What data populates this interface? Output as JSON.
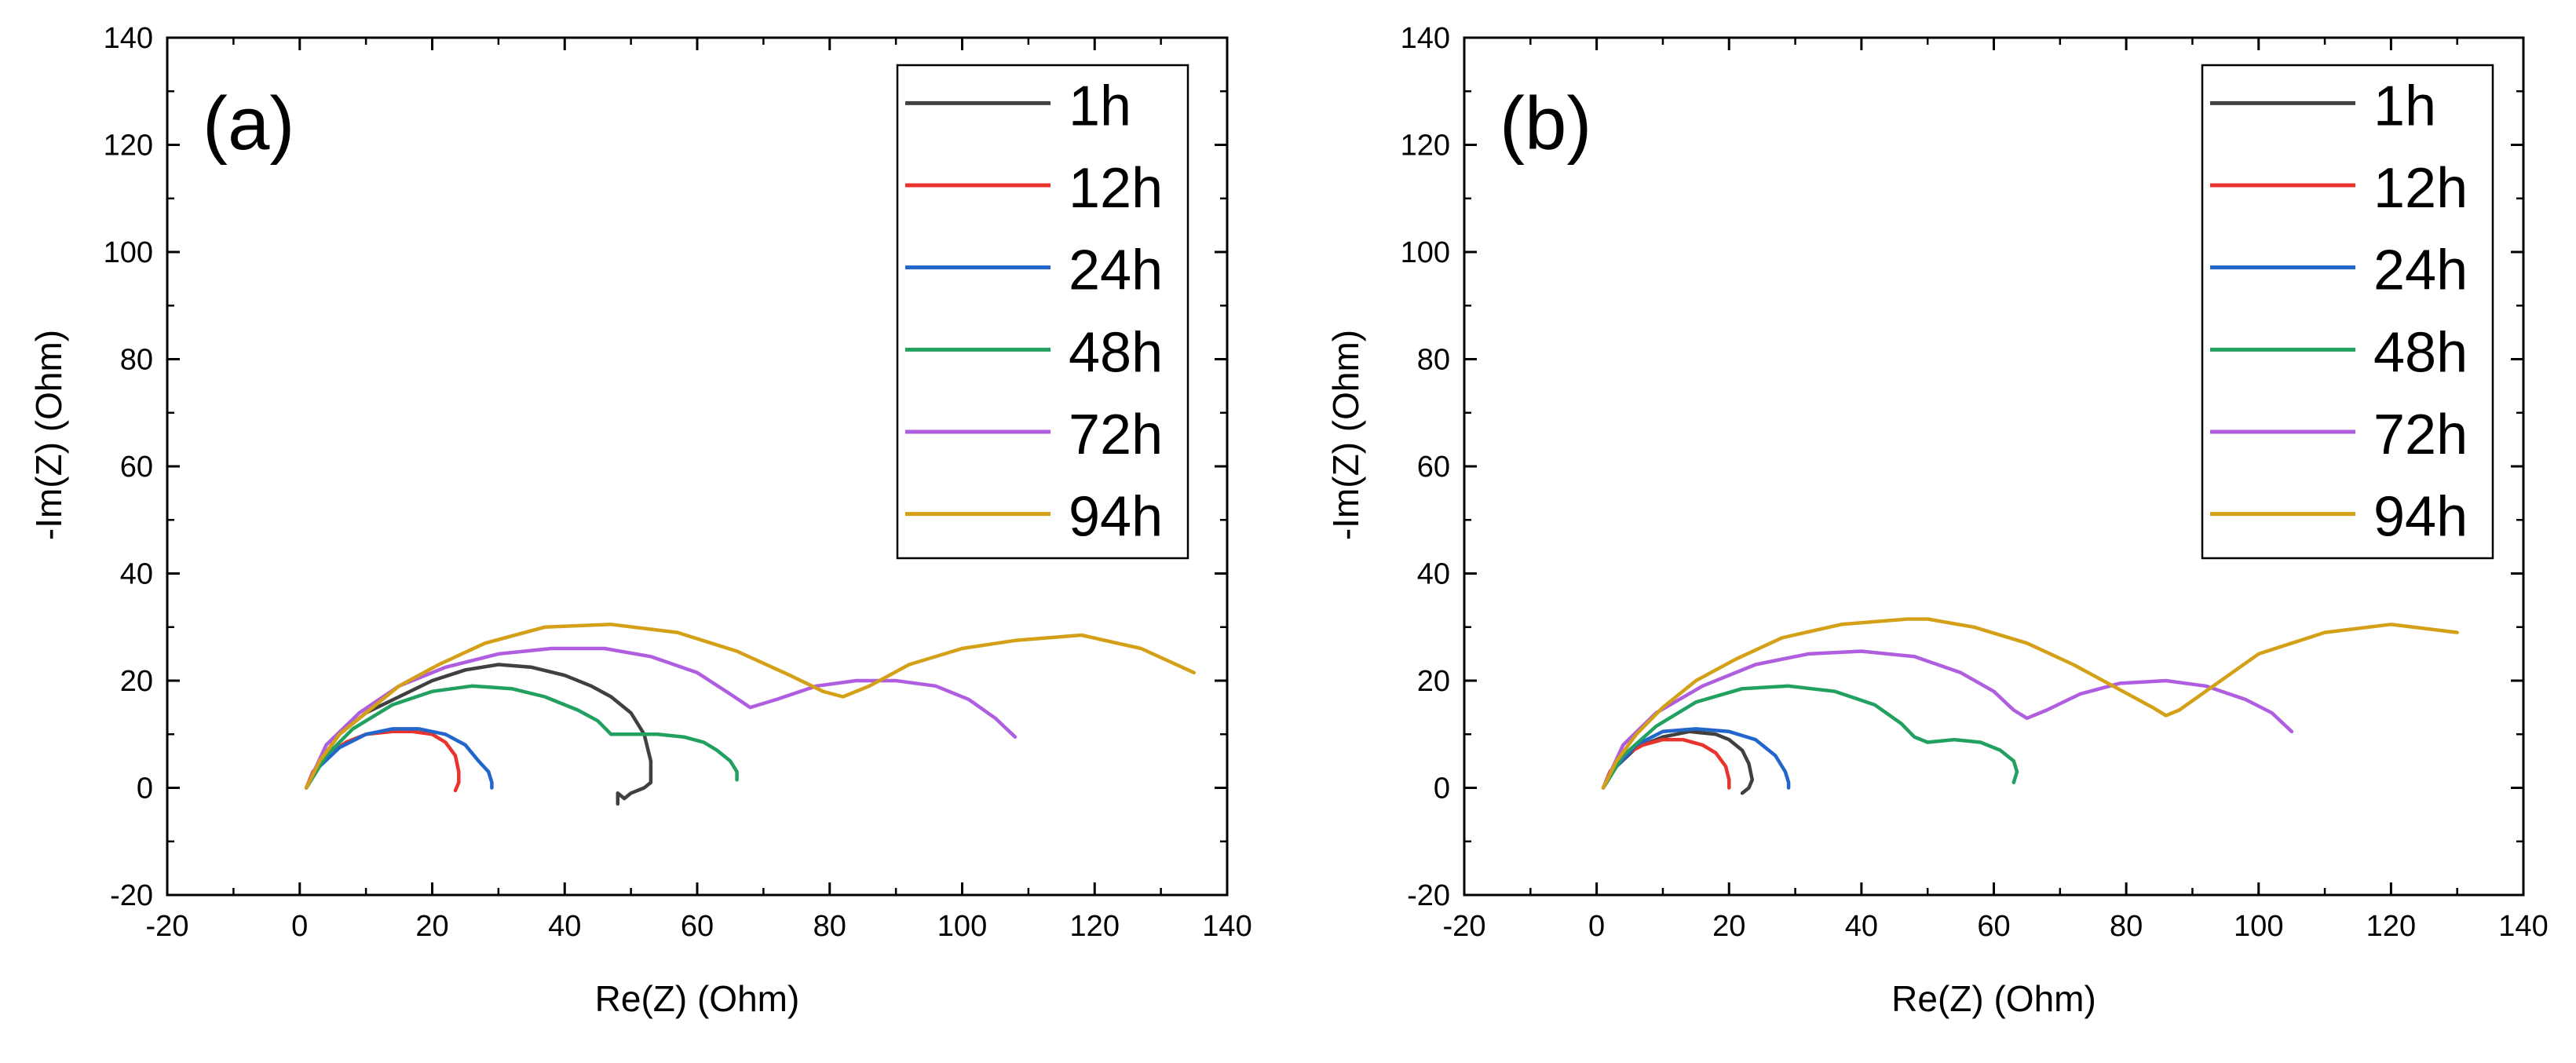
{
  "chart_data": [
    {
      "type": "line",
      "panel_label": "(a)",
      "xlabel": "Re(Z) (Ohm)",
      "ylabel": "-Im(Z) (Ohm)",
      "xlim": [
        -20,
        140
      ],
      "ylim": [
        -20,
        140
      ],
      "xticks": [
        "-20",
        "0",
        "20",
        "40",
        "60",
        "80",
        "100",
        "120",
        "140"
      ],
      "yticks": [
        "-20",
        "0",
        "20",
        "40",
        "60",
        "80",
        "100",
        "120",
        "140"
      ],
      "legend_position": "top-right",
      "series": [
        {
          "name": "1h",
          "color": "#404040",
          "x": [
            1,
            3,
            6,
            10,
            15,
            20,
            25,
            30,
            35,
            40,
            44,
            47,
            50,
            52,
            53,
            53,
            52,
            50,
            49,
            48,
            48
          ],
          "y": [
            0,
            5,
            10,
            14,
            17,
            20,
            22,
            23,
            22.5,
            21,
            19,
            17,
            14,
            10,
            5,
            1,
            0,
            -1,
            -2,
            -1,
            -3
          ]
        },
        {
          "name": "12h",
          "color": "#e8342c",
          "x": [
            1,
            2,
            4,
            7,
            10,
            14,
            17,
            20,
            22,
            23.5,
            24,
            24,
            23.5
          ],
          "y": [
            0,
            3,
            6,
            8.5,
            10,
            10.5,
            10.5,
            10,
            8.5,
            6,
            3,
            1,
            -0.5
          ]
        },
        {
          "name": "24h",
          "color": "#2266cc",
          "x": [
            1,
            3,
            6,
            10,
            14,
            18,
            22,
            25,
            27,
            28.5,
            29,
            29
          ],
          "y": [
            0,
            4,
            7.5,
            10,
            11,
            11,
            10,
            8,
            5,
            3,
            1,
            0
          ]
        },
        {
          "name": "48h",
          "color": "#22a060",
          "x": [
            1,
            4,
            8,
            14,
            20,
            26,
            32,
            37,
            42,
            45,
            47,
            50,
            54,
            58,
            61,
            63,
            65,
            66,
            66
          ],
          "y": [
            0,
            6,
            11,
            15.5,
            18,
            19,
            18.5,
            17,
            14.5,
            12.5,
            10,
            10,
            10,
            9.5,
            8.5,
            7,
            5,
            3,
            1.5
          ]
        },
        {
          "name": "72h",
          "color": "#b05ee0",
          "x": [
            1,
            4,
            9,
            15,
            22,
            30,
            38,
            46,
            53,
            60,
            65,
            68,
            72,
            78,
            84,
            90,
            96,
            101,
            105,
            108
          ],
          "y": [
            0,
            8,
            14,
            19,
            22.5,
            25,
            26,
            26,
            24.5,
            21.5,
            17.5,
            15,
            16.5,
            19,
            20,
            20,
            19,
            16.5,
            13,
            9.5
          ]
        },
        {
          "name": "94h",
          "color": "#d4a017",
          "x": [
            1,
            3,
            6,
            10,
            15,
            21,
            28,
            37,
            47,
            57,
            66,
            74,
            79,
            82,
            86,
            92,
            100,
            108,
            118,
            127,
            135
          ],
          "y": [
            0,
            5,
            10,
            14,
            19,
            23,
            27,
            30,
            30.5,
            29,
            25.5,
            21,
            18,
            17,
            19,
            23,
            26,
            27.5,
            28.5,
            26,
            21.5
          ]
        }
      ]
    },
    {
      "type": "line",
      "panel_label": "(b)",
      "xlabel": "Re(Z) (Ohm)",
      "ylabel": "-Im(Z) (Ohm)",
      "xlim": [
        -20,
        140
      ],
      "ylim": [
        -20,
        140
      ],
      "xticks": [
        "-20",
        "0",
        "20",
        "40",
        "60",
        "80",
        "100",
        "120",
        "140"
      ],
      "yticks": [
        "-20",
        "0",
        "20",
        "40",
        "60",
        "80",
        "100",
        "120",
        "140"
      ],
      "legend_position": "top-right",
      "series": [
        {
          "name": "1h",
          "color": "#404040",
          "x": [
            1,
            3,
            6,
            10,
            14,
            18,
            20,
            22,
            23,
            23.5,
            23,
            22
          ],
          "y": [
            0,
            4,
            7.5,
            9.5,
            10.5,
            10,
            9,
            7,
            4.5,
            1.5,
            0,
            -1
          ]
        },
        {
          "name": "12h",
          "color": "#e8342c",
          "x": [
            1,
            2,
            4,
            7,
            10,
            13,
            16,
            18,
            19.5,
            20,
            20
          ],
          "y": [
            0,
            3,
            6,
            8,
            9,
            9,
            8,
            6.5,
            4,
            1.5,
            0
          ]
        },
        {
          "name": "24h",
          "color": "#2266cc",
          "x": [
            1,
            3,
            6,
            10,
            15,
            20,
            24,
            27,
            28.5,
            29,
            29
          ],
          "y": [
            0,
            4,
            8,
            10.5,
            11,
            10.5,
            9,
            6,
            3,
            1,
            0
          ]
        },
        {
          "name": "48h",
          "color": "#22a060",
          "x": [
            1,
            4,
            9,
            15,
            22,
            29,
            36,
            42,
            46,
            48,
            50,
            54,
            58,
            61,
            63,
            63.5,
            63
          ],
          "y": [
            0,
            6,
            11.5,
            16,
            18.5,
            19,
            18,
            15.5,
            12,
            9.5,
            8.5,
            9,
            8.5,
            7,
            5,
            3,
            1
          ]
        },
        {
          "name": "72h",
          "color": "#b05ee0",
          "x": [
            1,
            4,
            9,
            16,
            24,
            32,
            40,
            48,
            55,
            60,
            63,
            65,
            68,
            73,
            79,
            86,
            92,
            98,
            102,
            105
          ],
          "y": [
            0,
            8,
            14,
            19,
            23,
            25,
            25.5,
            24.5,
            21.5,
            18,
            14.5,
            13,
            14.5,
            17.5,
            19.5,
            20,
            19,
            16.5,
            14,
            10.5
          ]
        },
        {
          "name": "94h",
          "color": "#d4a017",
          "x": [
            1,
            3,
            6,
            10,
            15,
            21,
            28,
            37,
            47,
            50,
            57,
            65,
            72,
            78,
            84,
            86,
            88,
            92,
            100,
            110,
            120,
            130
          ],
          "y": [
            0,
            5,
            10,
            15,
            20,
            24,
            28,
            30.5,
            31.5,
            31.5,
            30,
            27,
            23,
            19,
            15,
            13.5,
            14.5,
            18,
            25,
            29,
            30.5,
            29
          ]
        }
      ]
    }
  ]
}
